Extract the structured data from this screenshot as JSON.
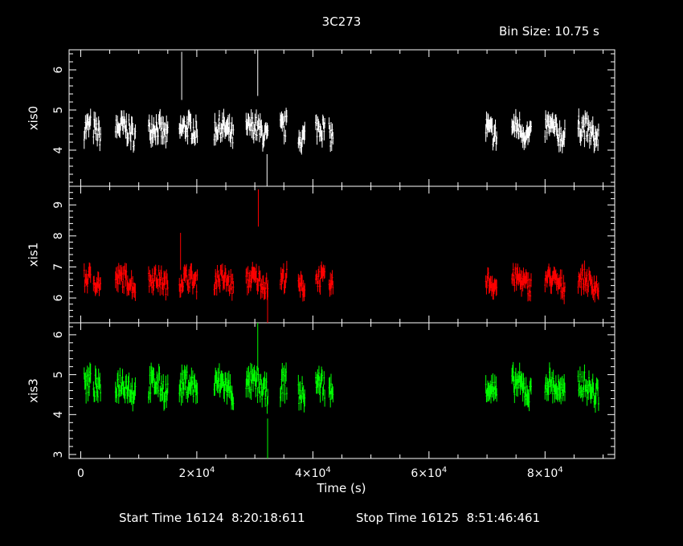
{
  "header": {
    "title": "3C273",
    "bin_size": "Bin Size: 10.75 s"
  },
  "footer": {
    "start_time": "Start Time 16124  8:20:18:611",
    "stop_time": "Stop Time 16125  8:51:46:461"
  },
  "chart_data": {
    "type": "scatter",
    "xlabel": "Time (s)",
    "xlim": [
      -2000,
      92000
    ],
    "x_ticks": [
      {
        "value": 0,
        "mantissa": "0",
        "exp": ""
      },
      {
        "value": 20000,
        "mantissa": "2×10",
        "exp": "4"
      },
      {
        "value": 40000,
        "mantissa": "4×10",
        "exp": "4"
      },
      {
        "value": 60000,
        "mantissa": "6×10",
        "exp": "4"
      },
      {
        "value": 80000,
        "mantissa": "8×10",
        "exp": "4"
      }
    ],
    "grid": false,
    "panels": [
      {
        "ylabel": "xis0",
        "color": "#ffffff",
        "ylim": [
          3.1,
          6.5
        ],
        "yticks": [
          4,
          5,
          6
        ],
        "level": 4.45,
        "amp": 0.28,
        "err": 0.18,
        "spikes": [
          {
            "x": 17400,
            "y": 5.85
          },
          {
            "x": 30500,
            "y": 5.95
          },
          {
            "x": 32100,
            "y": 3.3
          }
        ]
      },
      {
        "ylabel": "xis1",
        "color": "#ff0000",
        "ylim": [
          5.2,
          9.6
        ],
        "yticks": [
          6,
          7,
          8,
          9
        ],
        "level": 6.5,
        "amp": 0.3,
        "err": 0.22,
        "spikes": [
          {
            "x": 17200,
            "y": 7.5
          },
          {
            "x": 30600,
            "y": 8.9
          },
          {
            "x": 32200,
            "y": 5.6
          }
        ]
      },
      {
        "ylabel": "xis3",
        "color": "#00ff00",
        "ylim": [
          2.9,
          6.3
        ],
        "yticks": [
          3,
          4,
          5,
          6
        ],
        "level": 4.65,
        "amp": 0.3,
        "err": 0.2,
        "spikes": [
          {
            "x": 30500,
            "y": 5.7
          },
          {
            "x": 32200,
            "y": 3.3
          }
        ]
      }
    ],
    "segments": [
      [
        600,
        1700
      ],
      [
        2200,
        3500
      ],
      [
        6000,
        9500
      ],
      [
        11700,
        15000
      ],
      [
        17000,
        20100
      ],
      [
        23000,
        26300
      ],
      [
        28500,
        32300
      ],
      [
        34400,
        35500
      ],
      [
        37500,
        38600
      ],
      [
        40500,
        42100
      ],
      [
        42800,
        43500
      ],
      [
        69800,
        71700
      ],
      [
        74300,
        77600
      ],
      [
        80000,
        83500
      ],
      [
        85700,
        89300
      ]
    ]
  }
}
